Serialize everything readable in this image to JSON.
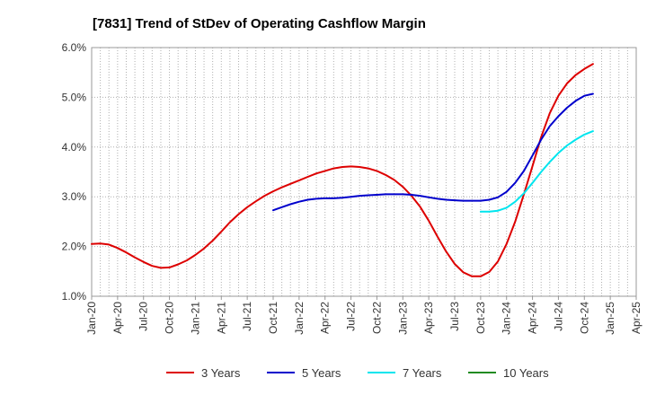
{
  "chart_data": {
    "type": "line",
    "title": "[7831]  Trend of StDev of Operating Cashflow Margin",
    "xlabel": "",
    "ylabel": "",
    "x_ticks": [
      "Jan-20",
      "Apr-20",
      "Jul-20",
      "Oct-20",
      "Jan-21",
      "Apr-21",
      "Jul-21",
      "Oct-21",
      "Jan-22",
      "Apr-22",
      "Jul-22",
      "Oct-22",
      "Jan-23",
      "Apr-23",
      "Jul-23",
      "Oct-23",
      "Jan-24",
      "Apr-24",
      "Jul-24",
      "Oct-24",
      "Jan-25",
      "Apr-25"
    ],
    "y_ticks": [
      "1.0%",
      "2.0%",
      "3.0%",
      "4.0%",
      "5.0%",
      "6.0%"
    ],
    "ylim": [
      1.0,
      6.0
    ],
    "x_unit": "month",
    "grid": true,
    "legend_position": "bottom",
    "series": [
      {
        "name": "3 Years",
        "color": "#dd0000",
        "points": [
          [
            "Jan-20",
            2.05
          ],
          [
            "Feb-20",
            2.06
          ],
          [
            "Mar-20",
            2.04
          ],
          [
            "Apr-20",
            1.97
          ],
          [
            "May-20",
            1.88
          ],
          [
            "Jun-20",
            1.78
          ],
          [
            "Jul-20",
            1.69
          ],
          [
            "Aug-20",
            1.61
          ],
          [
            "Sep-20",
            1.57
          ],
          [
            "Oct-20",
            1.58
          ],
          [
            "Nov-20",
            1.64
          ],
          [
            "Dec-20",
            1.72
          ],
          [
            "Jan-21",
            1.83
          ],
          [
            "Feb-21",
            1.96
          ],
          [
            "Mar-21",
            2.12
          ],
          [
            "Apr-21",
            2.3
          ],
          [
            "May-21",
            2.49
          ],
          [
            "Jun-21",
            2.65
          ],
          [
            "Jul-21",
            2.79
          ],
          [
            "Aug-21",
            2.91
          ],
          [
            "Sep-21",
            3.02
          ],
          [
            "Oct-21",
            3.11
          ],
          [
            "Nov-21",
            3.19
          ],
          [
            "Dec-21",
            3.26
          ],
          [
            "Jan-22",
            3.33
          ],
          [
            "Feb-22",
            3.4
          ],
          [
            "Mar-22",
            3.47
          ],
          [
            "Apr-22",
            3.52
          ],
          [
            "May-22",
            3.57
          ],
          [
            "Jun-22",
            3.6
          ],
          [
            "Jul-22",
            3.61
          ],
          [
            "Aug-22",
            3.6
          ],
          [
            "Sep-22",
            3.57
          ],
          [
            "Oct-22",
            3.52
          ],
          [
            "Nov-22",
            3.44
          ],
          [
            "Dec-22",
            3.34
          ],
          [
            "Jan-23",
            3.2
          ],
          [
            "Feb-23",
            3.02
          ],
          [
            "Mar-23",
            2.8
          ],
          [
            "Apr-23",
            2.52
          ],
          [
            "May-23",
            2.2
          ],
          [
            "Jun-23",
            1.9
          ],
          [
            "Jul-23",
            1.65
          ],
          [
            "Aug-23",
            1.48
          ],
          [
            "Sep-23",
            1.4
          ],
          [
            "Oct-23",
            1.4
          ],
          [
            "Nov-23",
            1.49
          ],
          [
            "Dec-23",
            1.7
          ],
          [
            "Jan-24",
            2.05
          ],
          [
            "Feb-24",
            2.5
          ],
          [
            "Mar-24",
            3.05
          ],
          [
            "Apr-24",
            3.62
          ],
          [
            "May-24",
            4.2
          ],
          [
            "Jun-24",
            4.68
          ],
          [
            "Jul-24",
            5.03
          ],
          [
            "Aug-24",
            5.28
          ],
          [
            "Sep-24",
            5.45
          ],
          [
            "Oct-24",
            5.57
          ],
          [
            "Nov-24",
            5.67
          ]
        ]
      },
      {
        "name": "5 Years",
        "color": "#0000cc",
        "points": [
          [
            "Oct-21",
            2.73
          ],
          [
            "Nov-21",
            2.79
          ],
          [
            "Dec-21",
            2.85
          ],
          [
            "Jan-22",
            2.9
          ],
          [
            "Feb-22",
            2.94
          ],
          [
            "Mar-22",
            2.96
          ],
          [
            "Apr-22",
            2.97
          ],
          [
            "May-22",
            2.97
          ],
          [
            "Jun-22",
            2.98
          ],
          [
            "Jul-22",
            3.0
          ],
          [
            "Aug-22",
            3.02
          ],
          [
            "Sep-22",
            3.03
          ],
          [
            "Oct-22",
            3.04
          ],
          [
            "Nov-22",
            3.05
          ],
          [
            "Dec-22",
            3.05
          ],
          [
            "Jan-23",
            3.05
          ],
          [
            "Feb-23",
            3.04
          ],
          [
            "Mar-23",
            3.02
          ],
          [
            "Apr-23",
            2.99
          ],
          [
            "May-23",
            2.96
          ],
          [
            "Jun-23",
            2.94
          ],
          [
            "Jul-23",
            2.93
          ],
          [
            "Aug-23",
            2.92
          ],
          [
            "Sep-23",
            2.92
          ],
          [
            "Oct-23",
            2.92
          ],
          [
            "Nov-23",
            2.94
          ],
          [
            "Dec-23",
            2.99
          ],
          [
            "Jan-24",
            3.1
          ],
          [
            "Feb-24",
            3.28
          ],
          [
            "Mar-24",
            3.52
          ],
          [
            "Apr-24",
            3.83
          ],
          [
            "May-24",
            4.15
          ],
          [
            "Jun-24",
            4.42
          ],
          [
            "Jul-24",
            4.62
          ],
          [
            "Aug-24",
            4.79
          ],
          [
            "Sep-24",
            4.93
          ],
          [
            "Oct-24",
            5.03
          ],
          [
            "Nov-24",
            5.07
          ]
        ]
      },
      {
        "name": "7 Years",
        "color": "#00e5ee",
        "points": [
          [
            "Oct-23",
            2.7
          ],
          [
            "Nov-23",
            2.7
          ],
          [
            "Dec-23",
            2.72
          ],
          [
            "Jan-24",
            2.78
          ],
          [
            "Feb-24",
            2.9
          ],
          [
            "Mar-24",
            3.07
          ],
          [
            "Apr-24",
            3.28
          ],
          [
            "May-24",
            3.5
          ],
          [
            "Jun-24",
            3.7
          ],
          [
            "Jul-24",
            3.88
          ],
          [
            "Aug-24",
            4.03
          ],
          [
            "Sep-24",
            4.15
          ],
          [
            "Oct-24",
            4.25
          ],
          [
            "Nov-24",
            4.32
          ]
        ]
      },
      {
        "name": "10 Years",
        "color": "#228B22",
        "points": []
      }
    ]
  }
}
